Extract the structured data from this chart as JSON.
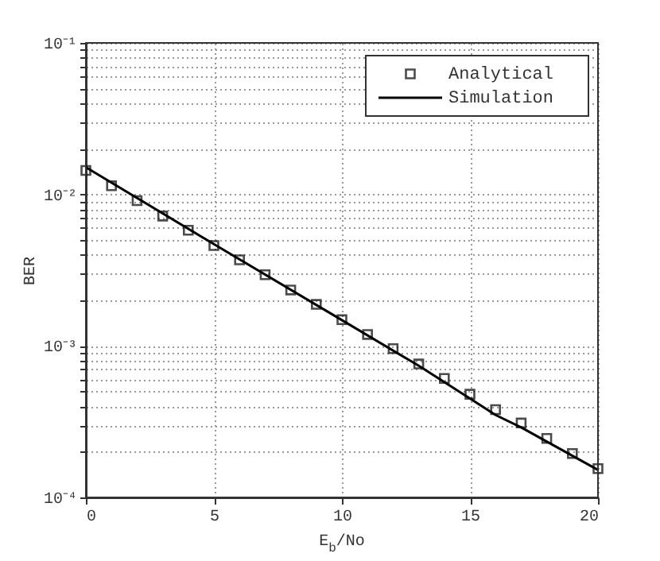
{
  "chart_data": {
    "type": "line",
    "xlabel": "E$_{b}$/No",
    "ylabel": "BER",
    "log": "y",
    "grid": true,
    "legend": "top right",
    "xlim": [
      0,
      20
    ],
    "xticks": [
      0,
      5,
      10,
      15,
      20
    ],
    "ylim": [
      0.0001,
      0.1
    ],
    "yticks": [
      {
        "value": 0.0001,
        "label": "10⁻⁴"
      },
      {
        "value": 0.0002,
        "label": null
      },
      {
        "value": 0.0003,
        "label": null
      },
      {
        "value": 0.0004,
        "label": null
      },
      {
        "value": 0.0005,
        "label": null
      },
      {
        "value": 0.0006,
        "label": null
      },
      {
        "value": 0.0007,
        "label": null
      },
      {
        "value": 0.0008,
        "label": null
      },
      {
        "value": 0.0009,
        "label": null
      },
      {
        "value": 0.001,
        "label": "10⁻³"
      },
      {
        "value": 0.002,
        "label": null
      },
      {
        "value": 0.003,
        "label": null
      },
      {
        "value": 0.004,
        "label": null
      },
      {
        "value": 0.005,
        "label": null
      },
      {
        "value": 0.006,
        "label": null
      },
      {
        "value": 0.007,
        "label": null
      },
      {
        "value": 0.008,
        "label": null
      },
      {
        "value": 0.009,
        "label": null
      },
      {
        "value": 0.01,
        "label": "10⁻²"
      },
      {
        "value": 0.02,
        "label": null
      },
      {
        "value": 0.03,
        "label": null
      },
      {
        "value": 0.04,
        "label": null
      },
      {
        "value": 0.05,
        "label": null
      },
      {
        "value": 0.06,
        "label": null
      },
      {
        "value": 0.07,
        "label": null
      },
      {
        "value": 0.08,
        "label": null
      },
      {
        "value": 0.09,
        "label": null
      },
      {
        "value": 0.1,
        "label": "10⁻¹"
      }
    ],
    "series": [
      {
        "name": "Analytical",
        "type": "scatter",
        "marker": "square",
        "color": "#000000",
        "x": [
          0,
          1,
          2,
          3,
          4,
          5,
          6,
          7,
          8,
          9,
          10,
          11,
          12,
          13,
          14,
          15,
          16,
          17,
          18,
          19,
          20
        ],
        "values": [
          0.0144,
          0.0114,
          0.0091,
          0.0072,
          0.0058,
          0.0046,
          0.0037,
          0.00295,
          0.00234,
          0.00188,
          0.00149,
          0.00119,
          0.00096,
          0.00076,
          0.00061,
          0.00048,
          0.00038,
          0.00031,
          0.000245,
          0.000195,
          0.000155
        ]
      },
      {
        "name": "Simulation",
        "line_style": "solid",
        "color": "#000000",
        "x": [
          0,
          5,
          10,
          13,
          15,
          16,
          17,
          20
        ],
        "values": [
          0.0151,
          0.0047,
          0.00148,
          0.00074,
          0.00045,
          0.00035,
          0.00029,
          0.000152
        ]
      }
    ]
  }
}
